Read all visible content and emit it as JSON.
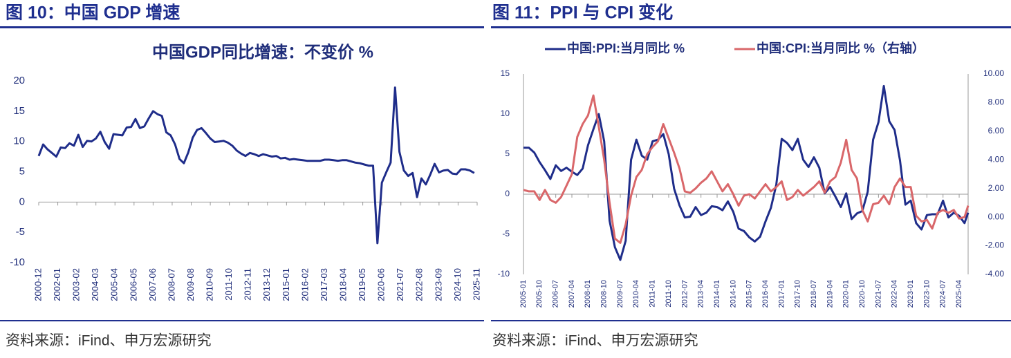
{
  "figure_titles": [
    "图 10：中国 GDP 增速",
    "图 11：PPI 与 CPI 变化"
  ],
  "sources": [
    "资料来源：iFind、申万宏源研究",
    "资料来源：iFind、申万宏源研究"
  ],
  "chart_data": [
    {
      "type": "line",
      "title": "中国GDP同比增速：不变价 %",
      "color": "#1f2d8a",
      "x": [
        "2000-12",
        "2001-03",
        "2001-06",
        "2001-09",
        "2001-12",
        "2002-03",
        "2002-06",
        "2002-09",
        "2002-12",
        "2003-03",
        "2003-06",
        "2003-09",
        "2003-12",
        "2004-03",
        "2004-06",
        "2004-09",
        "2004-12",
        "2005-03",
        "2005-06",
        "2005-09",
        "2005-12",
        "2006-03",
        "2006-06",
        "2006-09",
        "2006-12",
        "2007-03",
        "2007-06",
        "2007-09",
        "2007-12",
        "2008-03",
        "2008-06",
        "2008-09",
        "2008-12",
        "2009-03",
        "2009-06",
        "2009-09",
        "2009-12",
        "2010-03",
        "2010-06",
        "2010-09",
        "2010-12",
        "2011-03",
        "2011-06",
        "2011-09",
        "2011-12",
        "2012-03",
        "2012-06",
        "2012-09",
        "2012-12",
        "2013-03",
        "2013-06",
        "2013-09",
        "2013-12",
        "2014-03",
        "2014-06",
        "2014-09",
        "2014-12",
        "2015-03",
        "2015-06",
        "2015-09",
        "2015-12",
        "2016-03",
        "2016-06",
        "2016-09",
        "2016-12",
        "2017-03",
        "2017-06",
        "2017-09",
        "2017-12",
        "2018-03",
        "2018-06",
        "2018-09",
        "2018-12",
        "2019-03",
        "2019-06",
        "2019-09",
        "2019-12",
        "2020-03",
        "2020-06",
        "2020-09",
        "2020-12",
        "2021-03",
        "2021-06",
        "2021-09",
        "2021-12",
        "2022-03",
        "2022-06",
        "2022-09",
        "2022-12",
        "2023-03",
        "2023-06",
        "2023-09",
        "2023-12",
        "2024-03",
        "2024-06",
        "2024-09",
        "2024-12",
        "2025-03",
        "2025-06",
        "2025-09"
      ],
      "values": [
        7.6,
        9.5,
        8.7,
        8.1,
        7.5,
        9.0,
        8.9,
        9.7,
        9.3,
        11.1,
        9.1,
        10.1,
        10.0,
        10.5,
        11.6,
        9.9,
        8.8,
        11.2,
        11.1,
        11.0,
        12.3,
        12.4,
        13.7,
        12.2,
        12.5,
        13.8,
        15.0,
        14.5,
        14.2,
        11.5,
        11.0,
        9.5,
        7.1,
        6.4,
        8.2,
        10.6,
        11.9,
        12.2,
        11.4,
        10.5,
        9.9,
        10.0,
        10.1,
        9.8,
        9.3,
        8.5,
        8.0,
        7.6,
        8.1,
        7.9,
        7.6,
        7.9,
        7.7,
        7.5,
        7.6,
        7.2,
        7.3,
        7.0,
        7.1,
        7.0,
        6.9,
        6.8,
        6.8,
        6.8,
        6.8,
        7.0,
        7.0,
        6.9,
        6.8,
        6.9,
        6.9,
        6.7,
        6.5,
        6.4,
        6.2,
        6.0,
        6.0,
        -6.8,
        3.2,
        4.9,
        6.5,
        18.9,
        8.3,
        5.2,
        4.3,
        4.8,
        0.8,
        3.9,
        2.9,
        4.5,
        6.3,
        4.9,
        5.2,
        5.3,
        4.7,
        4.6,
        5.4,
        5.4,
        5.2,
        4.8
      ],
      "xlim": [
        "2000-12",
        "2025-11"
      ],
      "xticks": [
        "2000-12",
        "2002-01",
        "2003-02",
        "2004-03",
        "2005-04",
        "2006-05",
        "2007-06",
        "2008-07",
        "2009-08",
        "2010-09",
        "2011-10",
        "2012-11",
        "2013-12",
        "2015-01",
        "2016-02",
        "2017-03",
        "2018-04",
        "2019-05",
        "2020-06",
        "2021-07",
        "2022-08",
        "2023-09",
        "2024-10",
        "2025-11"
      ],
      "ylim": [
        -10,
        20
      ],
      "yticks": [
        -10,
        -5,
        0,
        5,
        10,
        15,
        20
      ],
      "grid": false
    },
    {
      "type": "line",
      "legend": "top",
      "x": [
        "2005-01",
        "2005-04",
        "2005-07",
        "2005-10",
        "2006-01",
        "2006-04",
        "2006-07",
        "2006-10",
        "2007-01",
        "2007-04",
        "2007-07",
        "2007-10",
        "2008-01",
        "2008-04",
        "2008-07",
        "2008-10",
        "2009-01",
        "2009-04",
        "2009-07",
        "2009-10",
        "2010-01",
        "2010-04",
        "2010-07",
        "2010-10",
        "2011-01",
        "2011-04",
        "2011-07",
        "2011-10",
        "2012-01",
        "2012-04",
        "2012-07",
        "2012-10",
        "2013-01",
        "2013-04",
        "2013-07",
        "2013-10",
        "2014-01",
        "2014-04",
        "2014-07",
        "2014-10",
        "2015-01",
        "2015-04",
        "2015-07",
        "2015-10",
        "2016-01",
        "2016-04",
        "2016-07",
        "2016-10",
        "2017-01",
        "2017-04",
        "2017-07",
        "2017-10",
        "2018-01",
        "2018-04",
        "2018-07",
        "2018-10",
        "2019-01",
        "2019-04",
        "2019-07",
        "2019-10",
        "2020-01",
        "2020-04",
        "2020-07",
        "2020-10",
        "2021-01",
        "2021-04",
        "2021-07",
        "2021-10",
        "2022-01",
        "2022-04",
        "2022-07",
        "2022-10",
        "2023-01",
        "2023-04",
        "2023-07",
        "2023-10",
        "2024-01",
        "2024-04",
        "2024-07",
        "2024-10",
        "2025-01",
        "2025-04",
        "2025-07",
        "2025-09"
      ],
      "series": [
        {
          "name": "中国:PPI:当月同比 %",
          "color": "#1f2d8a",
          "values": [
            5.8,
            5.8,
            5.2,
            4.0,
            3.0,
            1.9,
            3.6,
            2.9,
            3.3,
            2.8,
            2.4,
            3.2,
            6.1,
            8.1,
            10.0,
            6.6,
            -3.3,
            -6.6,
            -8.2,
            -5.8,
            4.3,
            6.8,
            4.8,
            4.3,
            6.6,
            6.8,
            7.5,
            5.0,
            0.7,
            -1.4,
            -2.9,
            -2.8,
            -1.6,
            -2.6,
            -2.3,
            -1.5,
            -1.6,
            -2.0,
            -0.9,
            -2.2,
            -4.3,
            -4.6,
            -5.4,
            -5.9,
            -5.3,
            -3.4,
            -1.7,
            1.2,
            6.9,
            6.4,
            5.5,
            6.9,
            4.3,
            3.4,
            4.6,
            3.3,
            0.1,
            0.9,
            -0.3,
            -1.6,
            0.1,
            -3.1,
            -2.4,
            -2.1,
            0.3,
            6.8,
            9.0,
            13.5,
            9.1,
            8.0,
            4.2,
            -1.3,
            -0.8,
            -3.6,
            -4.4,
            -2.6,
            -2.5,
            -2.5,
            -0.8,
            -2.9,
            -2.3,
            -2.7,
            -3.6,
            -2.3
          ]
        },
        {
          "name": "中国:CPI:当月同比 %（右轴）",
          "color": "#d9676a",
          "axis": "y2",
          "values": [
            1.9,
            1.8,
            1.8,
            1.2,
            1.9,
            1.2,
            1.0,
            1.4,
            2.2,
            3.0,
            5.6,
            6.5,
            7.1,
            8.5,
            6.3,
            4.0,
            1.0,
            -1.5,
            -1.8,
            -0.5,
            1.5,
            2.8,
            3.3,
            4.4,
            4.9,
            5.3,
            6.5,
            5.5,
            4.5,
            3.4,
            1.8,
            1.7,
            2.0,
            2.4,
            2.7,
            3.2,
            2.5,
            1.8,
            2.3,
            1.6,
            0.8,
            1.5,
            1.6,
            1.3,
            1.8,
            2.3,
            1.8,
            2.1,
            2.5,
            1.2,
            1.4,
            1.9,
            1.5,
            1.8,
            2.1,
            2.5,
            1.7,
            2.5,
            2.8,
            3.8,
            5.4,
            3.3,
            2.7,
            0.5,
            -0.3,
            0.9,
            1.0,
            1.5,
            0.9,
            2.1,
            2.7,
            2.1,
            2.1,
            0.1,
            -0.3,
            -0.2,
            -0.8,
            0.3,
            0.5,
            0.3,
            0.5,
            -0.1,
            0.0,
            0.8
          ]
        }
      ],
      "xlim": [
        "2005-01",
        "2025-09"
      ],
      "xticks": [
        "2005-01",
        "2005-10",
        "2006-07",
        "2007-04",
        "2008-01",
        "2008-10",
        "2009-07",
        "2010-04",
        "2011-01",
        "2011-10",
        "2012-07",
        "2013-04",
        "2014-01",
        "2014-10",
        "2015-07",
        "2016-04",
        "2017-01",
        "2017-10",
        "2018-07",
        "2019-04",
        "2020-01",
        "2020-10",
        "2021-07",
        "2022-04",
        "2023-01",
        "2023-10",
        "2024-07",
        "2025-04"
      ],
      "ylim": [
        -10,
        15
      ],
      "yticks": [
        -10,
        -5,
        0,
        5,
        10,
        15
      ],
      "y2lim": [
        -4,
        10
      ],
      "y2ticks": [
        {
          "value": -4,
          "label": "-4.00"
        },
        {
          "value": -2,
          "label": "-2.00"
        },
        {
          "value": 0,
          "label": "0.00"
        },
        {
          "value": 2,
          "label": "2.00"
        },
        {
          "value": 4,
          "label": "4.00"
        },
        {
          "value": 6,
          "label": "6.00"
        },
        {
          "value": 8,
          "label": "8.00"
        },
        {
          "value": 10,
          "label": "10.00"
        }
      ],
      "grid": false
    }
  ]
}
